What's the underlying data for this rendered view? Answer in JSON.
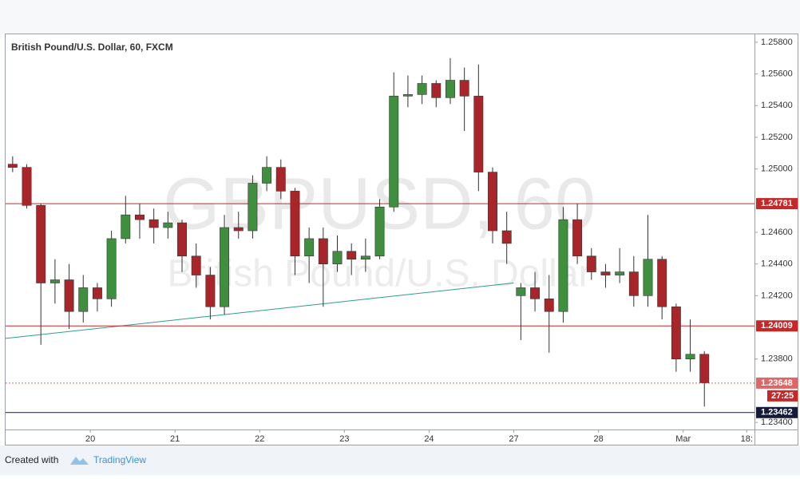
{
  "chart_data": {
    "type": "candlestick",
    "title": "British Pound/U.S. Dollar, 60, FXCM",
    "watermark": [
      "GBPUSD, 60",
      "British Pound/U.S. Dollar"
    ],
    "up_color": "#3f8f3f",
    "down_color": "#a8262a",
    "x": [
      2,
      6,
      10,
      14,
      18,
      22,
      26,
      30,
      34,
      38,
      42,
      46,
      50,
      54,
      58,
      62,
      66,
      70,
      74,
      78,
      82,
      86,
      90,
      94,
      98,
      102,
      106,
      110,
      114,
      118,
      122,
      126,
      130,
      134,
      138,
      142,
      146,
      150,
      154,
      158,
      162,
      166,
      170,
      174,
      178,
      182,
      186,
      190,
      194,
      198
    ],
    "open": [
      1.2503,
      1.2501,
      1.2477,
      1.2428,
      1.243,
      1.241,
      1.2425,
      1.2418,
      1.2456,
      1.2471,
      1.2468,
      1.2463,
      1.2466,
      1.2445,
      1.2433,
      1.2413,
      1.2463,
      1.2461,
      1.2491,
      1.2501,
      1.2486,
      1.2445,
      1.2456,
      1.244,
      1.2448,
      1.2443,
      1.2445,
      1.2476,
      1.2546,
      1.2547,
      1.2554,
      1.2545,
      1.2556,
      1.2546,
      1.2498,
      1.2461,
      1.242,
      1.2425,
      1.2418,
      1.241,
      1.2468,
      1.2445,
      1.2435,
      1.2433,
      1.2435,
      1.242,
      1.2443,
      1.2413,
      1.238,
      1.2383
    ],
    "high": [
      1.2508,
      1.2503,
      1.2478,
      1.2443,
      1.244,
      1.2433,
      1.2428,
      1.2461,
      1.2483,
      1.2478,
      1.2475,
      1.2473,
      1.2468,
      1.2453,
      1.2438,
      1.2471,
      1.2473,
      1.2496,
      1.2508,
      1.2506,
      1.2488,
      1.2463,
      1.2463,
      1.2458,
      1.2453,
      1.2456,
      1.2481,
      1.2561,
      1.2559,
      1.2559,
      1.2556,
      1.257,
      1.2564,
      1.2566,
      1.2501,
      1.2473,
      1.2428,
      1.2435,
      1.2433,
      1.2476,
      1.2478,
      1.245,
      1.244,
      1.245,
      1.2445,
      1.2471,
      1.2445,
      1.2415,
      1.2405,
      1.2385
    ],
    "low": [
      1.2498,
      1.2475,
      1.2389,
      1.2415,
      1.2399,
      1.2403,
      1.241,
      1.2413,
      1.2453,
      1.2456,
      1.2453,
      1.2456,
      1.2435,
      1.2425,
      1.2405,
      1.2408,
      1.2456,
      1.2456,
      1.2486,
      1.2481,
      1.2433,
      1.2428,
      1.2413,
      1.2435,
      1.2433,
      1.2435,
      1.2443,
      1.2473,
      1.2539,
      1.2541,
      1.2539,
      1.2541,
      1.2524,
      1.2486,
      1.2453,
      1.244,
      1.2392,
      1.241,
      1.2384,
      1.2403,
      1.244,
      1.243,
      1.2425,
      1.2428,
      1.2413,
      1.2413,
      1.2405,
      1.2372,
      1.2372,
      1.235
    ],
    "close": [
      1.2501,
      1.2477,
      1.2428,
      1.243,
      1.241,
      1.2425,
      1.2418,
      1.2456,
      1.2471,
      1.2468,
      1.2463,
      1.2466,
      1.2445,
      1.2433,
      1.2413,
      1.2463,
      1.2461,
      1.2491,
      1.2501,
      1.2486,
      1.2445,
      1.2456,
      1.244,
      1.2448,
      1.2443,
      1.2445,
      1.2476,
      1.2546,
      1.2547,
      1.2554,
      1.2545,
      1.2556,
      1.2546,
      1.2498,
      1.2461,
      1.2453,
      1.2425,
      1.2418,
      1.241,
      1.2468,
      1.2445,
      1.2435,
      1.2433,
      1.2435,
      1.242,
      1.2443,
      1.2413,
      1.238,
      1.2383,
      1.2365
    ],
    "xlim": [
      0,
      212.2
    ],
    "ylim": [
      1.23355,
      1.2585
    ],
    "xticks": [
      {
        "value": 24,
        "label": "20"
      },
      {
        "value": 48,
        "label": "21"
      },
      {
        "value": 72,
        "label": "22"
      },
      {
        "value": 96,
        "label": "23"
      },
      {
        "value": 120,
        "label": "24"
      },
      {
        "value": 144,
        "label": "27"
      },
      {
        "value": 168,
        "label": "28"
      },
      {
        "value": 192,
        "label": "Mar"
      },
      {
        "value": 210,
        "label": "18:"
      }
    ],
    "yticks": [
      {
        "value": 1.258,
        "label": "1.25800"
      },
      {
        "value": 1.256,
        "label": "1.25600"
      },
      {
        "value": 1.254,
        "label": "1.25400"
      },
      {
        "value": 1.252,
        "label": "1.25200"
      },
      {
        "value": 1.25,
        "label": "1.25000"
      },
      {
        "value": 1.246,
        "label": "1.24600"
      },
      {
        "value": 1.244,
        "label": "1.24400"
      },
      {
        "value": 1.242,
        "label": "1.24200"
      },
      {
        "value": 1.238,
        "label": "1.23800"
      },
      {
        "value": 1.234,
        "label": "1.23400"
      }
    ],
    "levels": [
      {
        "value": 1.24781,
        "color": "#c62828",
        "style": "solid"
      },
      {
        "value": 1.24009,
        "color": "#c62828",
        "style": "solid"
      },
      {
        "value": 1.23648,
        "color": "#e06666",
        "style": "dotted"
      },
      {
        "value": 1.23462,
        "color": "#131a3a",
        "style": "solid"
      }
    ],
    "trendline": {
      "x": [
        0,
        144
      ],
      "y": [
        1.2393,
        1.2428
      ],
      "color": "#2e9e8e"
    },
    "countdown": "27:25"
  },
  "footer": {
    "prefix": "Created with",
    "brand": "TradingView"
  }
}
